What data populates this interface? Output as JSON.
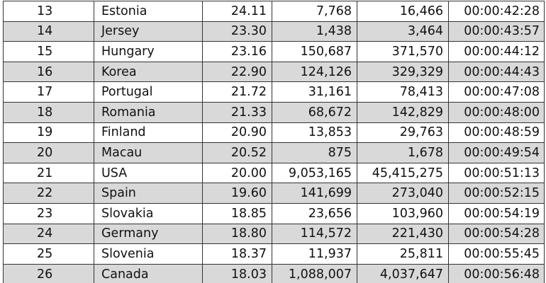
{
  "rows": [
    {
      "rank": "13",
      "country": "Estonia",
      "score": "24.11",
      "a": "7,768",
      "b": "16,466",
      "time": "00:00:42:28"
    },
    {
      "rank": "14",
      "country": "Jersey",
      "score": "23.30",
      "a": "1,438",
      "b": "3,464",
      "time": "00:00:43:57"
    },
    {
      "rank": "15",
      "country": "Hungary",
      "score": "23.16",
      "a": "150,687",
      "b": "371,570",
      "time": "00:00:44:12"
    },
    {
      "rank": "16",
      "country": "Korea",
      "score": "22.90",
      "a": "124,126",
      "b": "329,329",
      "time": "00:00:44:43"
    },
    {
      "rank": "17",
      "country": "Portugal",
      "score": "21.72",
      "a": "31,161",
      "b": "78,413",
      "time": "00:00:47:08"
    },
    {
      "rank": "18",
      "country": "Romania",
      "score": "21.33",
      "a": "68,672",
      "b": "142,829",
      "time": "00:00:48:00"
    },
    {
      "rank": "19",
      "country": "Finland",
      "score": "20.90",
      "a": "13,853",
      "b": "29,763",
      "time": "00:00:48:59"
    },
    {
      "rank": "20",
      "country": "Macau",
      "score": "20.52",
      "a": "875",
      "b": "1,678",
      "time": "00:00:49:54"
    },
    {
      "rank": "21",
      "country": "USA",
      "score": "20.00",
      "a": "9,053,165",
      "b": "45,415,275",
      "time": "00:00:51:13"
    },
    {
      "rank": "22",
      "country": "Spain",
      "score": "19.60",
      "a": "141,699",
      "b": "273,040",
      "time": "00:00:52:15"
    },
    {
      "rank": "23",
      "country": "Slovakia",
      "score": "18.85",
      "a": "23,656",
      "b": "103,960",
      "time": "00:00:54:19"
    },
    {
      "rank": "24",
      "country": "Germany",
      "score": "18.80",
      "a": "114,572",
      "b": "221,430",
      "time": "00:00:54:28"
    },
    {
      "rank": "25",
      "country": "Slovenia",
      "score": "18.37",
      "a": "11,937",
      "b": "25,811",
      "time": "00:00:55:45"
    },
    {
      "rank": "26",
      "country": "Canada",
      "score": "18.03",
      "a": "1,088,007",
      "b": "4,037,647",
      "time": "00:00:56:48"
    }
  ]
}
